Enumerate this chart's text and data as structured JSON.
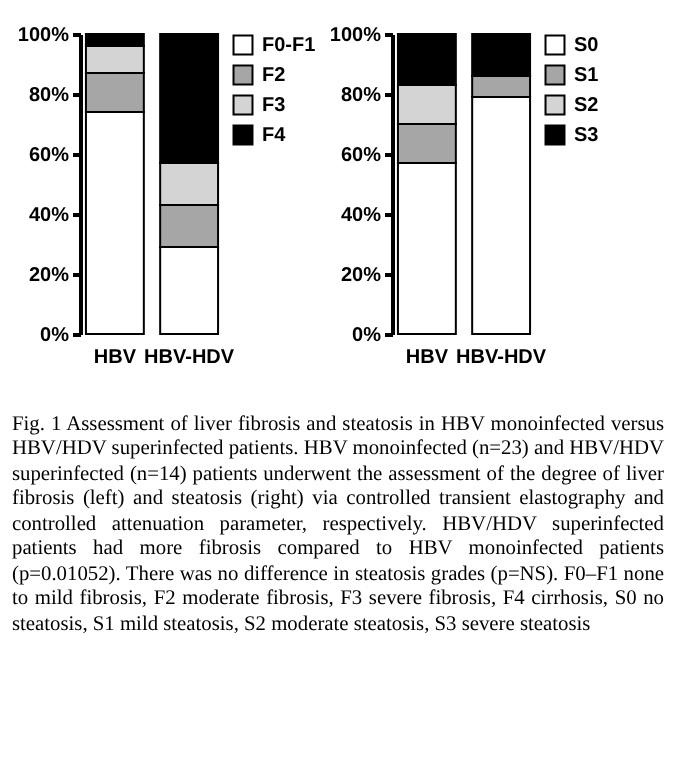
{
  "chart_data": [
    {
      "type": "bar",
      "stacked": true,
      "categories": [
        "HBV",
        "HBV-HDV"
      ],
      "legend": "top right",
      "grid": false,
      "series": [
        {
          "name": "F0-F1",
          "color": "#ffffff",
          "values": [
            74,
            29
          ]
        },
        {
          "name": "F2",
          "color": "#a6a6a6",
          "values": [
            13,
            14
          ]
        },
        {
          "name": "F3",
          "color": "#d4d4d4",
          "values": [
            9,
            14
          ]
        },
        {
          "name": "F4",
          "color": "#000000",
          "values": [
            4,
            43
          ]
        }
      ],
      "ylim": [
        0,
        100
      ],
      "yticks": [
        {
          "value": 0,
          "label": "0%"
        },
        {
          "value": 20,
          "label": "20%"
        },
        {
          "value": 40,
          "label": "40%"
        },
        {
          "value": 60,
          "label": "60%"
        },
        {
          "value": 80,
          "label": "80%"
        },
        {
          "value": 100,
          "label": "100%"
        }
      ],
      "annotations": [
        "Fig. 1 Assessment of liver fibrosis and steatosis in HBV monoinfected versus HBV/HDV superinfected patients. HBV monoinfected (n=23) and HBV/HDV superinfected (n=14) patients underwent the assessment of the degree of liver fibrosis (left) and steatosis (right) via controlled transient elastography and controlled attenuation parameter, respectively. HBV/HDV superinfected patients had more fibrosis compared to HBV monoinfected patients (p=0.01052). There was no difference in steatosis grades (p=NS). F0–F1 none to mild fibrosis, F2 moderate fibrosis, F3 severe fibrosis, F4 cirrhosis, S0 no steatosis, S1 mild steatosis, S2 moderate steatosis, S3 severe steatosis"
      ]
    },
    {
      "type": "bar",
      "stacked": true,
      "categories": [
        "HBV",
        "HBV-HDV"
      ],
      "legend": "top right",
      "grid": false,
      "series": [
        {
          "name": "S0",
          "color": "#ffffff",
          "values": [
            57,
            79
          ]
        },
        {
          "name": "S1",
          "color": "#a6a6a6",
          "values": [
            13,
            7
          ]
        },
        {
          "name": "S2",
          "color": "#d4d4d4",
          "values": [
            13,
            0
          ]
        },
        {
          "name": "S3",
          "color": "#000000",
          "values": [
            17,
            14
          ]
        }
      ],
      "ylim": [
        0,
        100
      ],
      "yticks": [
        {
          "value": 0,
          "label": "0%"
        },
        {
          "value": 20,
          "label": "20%"
        },
        {
          "value": 40,
          "label": "40%"
        },
        {
          "value": 60,
          "label": "60%"
        },
        {
          "value": 80,
          "label": "80%"
        },
        {
          "value": 100,
          "label": "100%"
        }
      ]
    }
  ]
}
